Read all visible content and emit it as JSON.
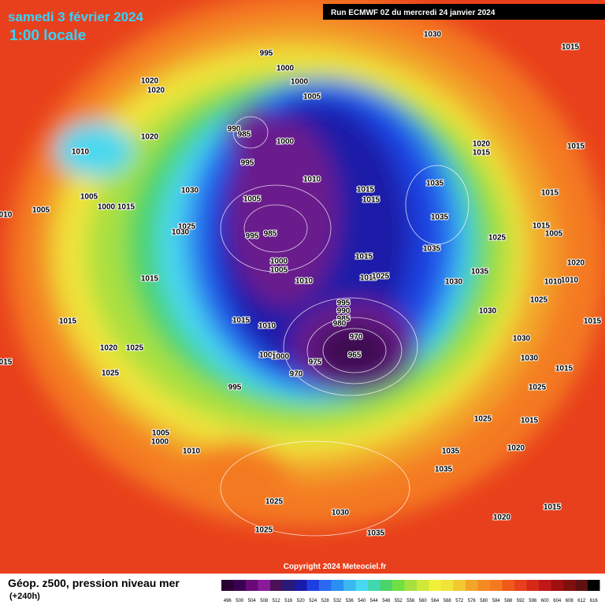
{
  "header": {
    "date": "samedi 3 février 2024",
    "time": "1:00 locale",
    "run": "Run ECMWF 0Z du mercredi 24 janvier 2024"
  },
  "footer": {
    "copyright": "Copyright 2024 Meteociel.fr",
    "legend_title": "Géop. z500, pression niveau mer",
    "lead_time": "(+240h)"
  },
  "colorbar": {
    "labels": [
      "496",
      "500",
      "504",
      "508",
      "512",
      "516",
      "520",
      "524",
      "528",
      "532",
      "536",
      "540",
      "544",
      "548",
      "552",
      "556",
      "560",
      "564",
      "568",
      "572",
      "576",
      "580",
      "584",
      "588",
      "592",
      "596",
      "600",
      "604",
      "608",
      "612",
      "616"
    ]
  },
  "map": {
    "isobar_labels": [
      "995",
      "1000",
      "1000",
      "1005",
      "990",
      "985",
      "995",
      "1000",
      "1010",
      "1005",
      "995",
      "985",
      "1000",
      "1005",
      "1010",
      "1015",
      "1010",
      "995",
      "990",
      "985",
      "980",
      "970",
      "965",
      "975",
      "970",
      "1005",
      "1000",
      "995",
      "1015",
      "1015",
      "1035",
      "1035",
      "1035",
      "1025",
      "1015",
      "1015",
      "1025",
      "1030",
      "1035",
      "1030",
      "1030",
      "1030",
      "1025",
      "1015",
      "1025",
      "1035",
      "1035",
      "1020",
      "1020",
      "1015",
      "1030",
      "1035",
      "1025",
      "1025",
      "1010",
      "1005",
      "1000",
      "1025",
      "1020",
      "1025",
      "1015",
      "1015",
      "1005",
      "1005",
      "1000",
      "1015",
      "1010",
      "1020",
      "1020",
      "1020",
      "1030",
      "1025",
      "1030",
      "1030",
      "1015",
      "1020",
      "1015",
      "1015",
      "1015",
      "1015",
      "1005",
      "1020",
      "1010",
      "1010",
      "1025",
      "1015",
      "1015",
      "010",
      "015"
    ]
  }
}
